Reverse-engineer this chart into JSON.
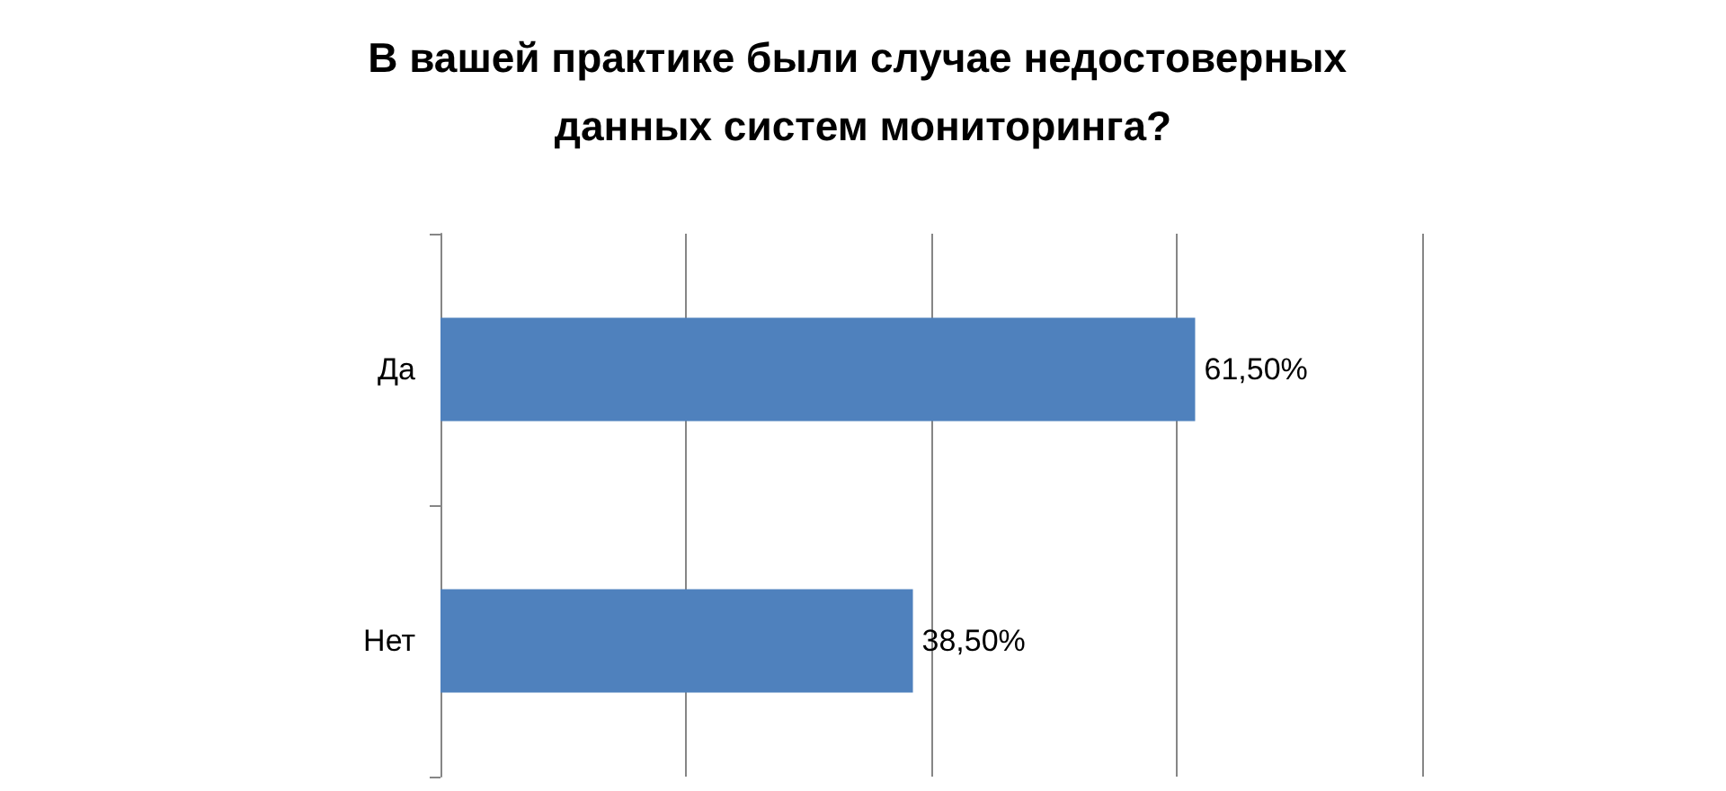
{
  "chart_data": {
    "type": "bar",
    "orientation": "horizontal",
    "title": "В вашей практике были случае недостоверных данных систем мониторинга?",
    "categories": [
      "Да",
      "Нет"
    ],
    "series": [
      {
        "color": "#4f81bd",
        "values": [
          61.5,
          38.5
        ],
        "value_labels": [
          "61,50%",
          "38,50%"
        ]
      }
    ],
    "xlim": [
      0,
      80
    ],
    "xticks": [
      {
        "value": 0,
        "label": null
      },
      {
        "value": 20,
        "label": null
      },
      {
        "value": 40,
        "label": null
      },
      {
        "value": 60,
        "label": null
      },
      {
        "value": 80,
        "label": null
      }
    ],
    "tick_labels": "y",
    "grid": "x"
  }
}
